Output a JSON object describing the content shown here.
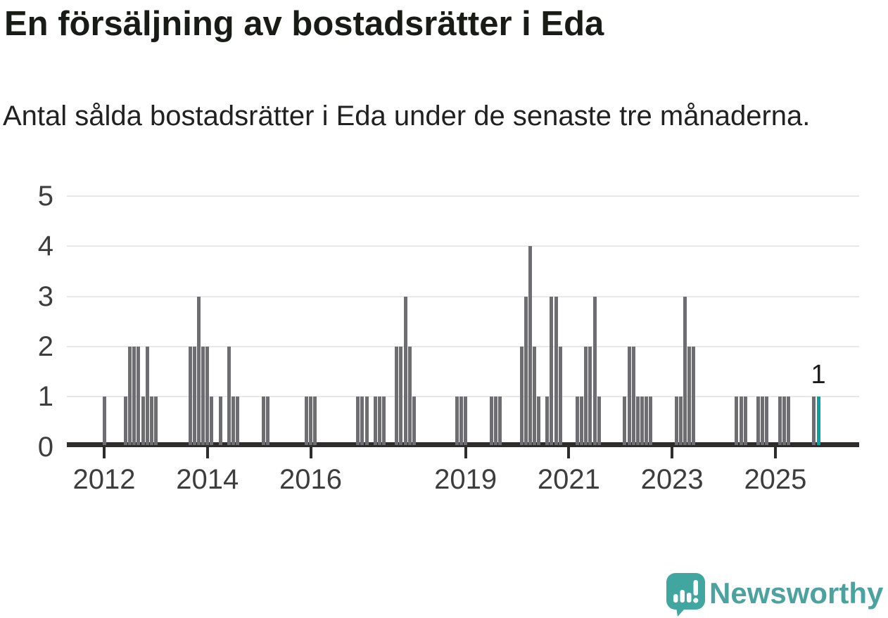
{
  "header": {
    "title": "En försäljning av bostadsrätter i Eda",
    "subtitle": "Antal sålda bostadsrätter i Eda under de senaste tre månaderna."
  },
  "chart_data": {
    "type": "bar",
    "title": "En försäljning av bostadsrätter i Eda",
    "subtitle": "Antal sålda bostadsrätter i Eda under de senaste tre månaderna.",
    "ylabel": "",
    "xlabel": "",
    "ylim": [
      0,
      5
    ],
    "yticks": [
      0,
      1,
      2,
      3,
      4,
      5
    ],
    "grid": "horizontal",
    "legend": "none",
    "bar_color": "#6e6d72",
    "highlight_color": "#0ba1a1",
    "x_ticks": [
      {
        "label": "2012",
        "month": "2012-01"
      },
      {
        "label": "2014",
        "month": "2014-01"
      },
      {
        "label": "2016",
        "month": "2016-01"
      },
      {
        "label": "2019",
        "month": "2019-01"
      },
      {
        "label": "2021",
        "month": "2021-01"
      },
      {
        "label": "2023",
        "month": "2023-01"
      },
      {
        "label": "2025",
        "month": "2025-01"
      }
    ],
    "highlight": {
      "month": "2025-11",
      "value": 1,
      "label": "1"
    },
    "bars": [
      {
        "month": "2012-01",
        "value": 1
      },
      {
        "month": "2012-06",
        "value": 1
      },
      {
        "month": "2012-07",
        "value": 2
      },
      {
        "month": "2012-08",
        "value": 2
      },
      {
        "month": "2012-09",
        "value": 2
      },
      {
        "month": "2012-10",
        "value": 1
      },
      {
        "month": "2012-11",
        "value": 2
      },
      {
        "month": "2012-12",
        "value": 1
      },
      {
        "month": "2013-01",
        "value": 1
      },
      {
        "month": "2013-09",
        "value": 2
      },
      {
        "month": "2013-10",
        "value": 2
      },
      {
        "month": "2013-11",
        "value": 3
      },
      {
        "month": "2013-12",
        "value": 2
      },
      {
        "month": "2014-01",
        "value": 2
      },
      {
        "month": "2014-02",
        "value": 1
      },
      {
        "month": "2014-04",
        "value": 1
      },
      {
        "month": "2014-06",
        "value": 2
      },
      {
        "month": "2014-07",
        "value": 1
      },
      {
        "month": "2014-08",
        "value": 1
      },
      {
        "month": "2015-02",
        "value": 1
      },
      {
        "month": "2015-03",
        "value": 1
      },
      {
        "month": "2015-12",
        "value": 1
      },
      {
        "month": "2016-01",
        "value": 1
      },
      {
        "month": "2016-02",
        "value": 1
      },
      {
        "month": "2016-12",
        "value": 1
      },
      {
        "month": "2017-01",
        "value": 1
      },
      {
        "month": "2017-02",
        "value": 1
      },
      {
        "month": "2017-04",
        "value": 1
      },
      {
        "month": "2017-05",
        "value": 1
      },
      {
        "month": "2017-06",
        "value": 1
      },
      {
        "month": "2017-09",
        "value": 2
      },
      {
        "month": "2017-10",
        "value": 2
      },
      {
        "month": "2017-11",
        "value": 3
      },
      {
        "month": "2017-12",
        "value": 2
      },
      {
        "month": "2018-01",
        "value": 1
      },
      {
        "month": "2018-11",
        "value": 1
      },
      {
        "month": "2018-12",
        "value": 1
      },
      {
        "month": "2019-01",
        "value": 1
      },
      {
        "month": "2019-07",
        "value": 1
      },
      {
        "month": "2019-08",
        "value": 1
      },
      {
        "month": "2019-09",
        "value": 1
      },
      {
        "month": "2020-02",
        "value": 2
      },
      {
        "month": "2020-03",
        "value": 3
      },
      {
        "month": "2020-04",
        "value": 4
      },
      {
        "month": "2020-05",
        "value": 2
      },
      {
        "month": "2020-06",
        "value": 1
      },
      {
        "month": "2020-08",
        "value": 1
      },
      {
        "month": "2020-09",
        "value": 3
      },
      {
        "month": "2020-10",
        "value": 3
      },
      {
        "month": "2020-11",
        "value": 2
      },
      {
        "month": "2021-03",
        "value": 1
      },
      {
        "month": "2021-04",
        "value": 1
      },
      {
        "month": "2021-05",
        "value": 2
      },
      {
        "month": "2021-06",
        "value": 2
      },
      {
        "month": "2021-07",
        "value": 3
      },
      {
        "month": "2021-08",
        "value": 1
      },
      {
        "month": "2022-02",
        "value": 1
      },
      {
        "month": "2022-03",
        "value": 2
      },
      {
        "month": "2022-04",
        "value": 2
      },
      {
        "month": "2022-05",
        "value": 1
      },
      {
        "month": "2022-06",
        "value": 1
      },
      {
        "month": "2022-07",
        "value": 1
      },
      {
        "month": "2022-08",
        "value": 1
      },
      {
        "month": "2023-02",
        "value": 1
      },
      {
        "month": "2023-03",
        "value": 1
      },
      {
        "month": "2023-04",
        "value": 3
      },
      {
        "month": "2023-05",
        "value": 2
      },
      {
        "month": "2023-06",
        "value": 2
      },
      {
        "month": "2024-04",
        "value": 1
      },
      {
        "month": "2024-05",
        "value": 1
      },
      {
        "month": "2024-06",
        "value": 1
      },
      {
        "month": "2024-09",
        "value": 1
      },
      {
        "month": "2024-10",
        "value": 1
      },
      {
        "month": "2024-11",
        "value": 1
      },
      {
        "month": "2025-02",
        "value": 1
      },
      {
        "month": "2025-03",
        "value": 1
      },
      {
        "month": "2025-04",
        "value": 1
      },
      {
        "month": "2025-10",
        "value": 1
      },
      {
        "month": "2025-11",
        "value": 1,
        "highlight": true,
        "label": "1"
      }
    ]
  },
  "footer": {
    "brand": "Newsworthy",
    "brand_color": "#4ba29e",
    "logo_icon": "newsworthy-speech-bubble-chart-icon"
  }
}
